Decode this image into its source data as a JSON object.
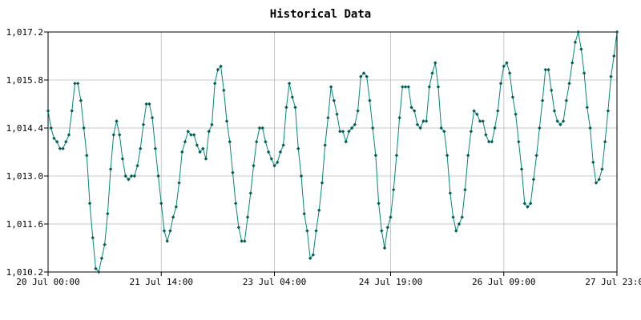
{
  "chart_data": {
    "type": "line",
    "title": "Historical Data",
    "xlabel": "",
    "ylabel": "",
    "grid": true,
    "ylim": [
      1010.2,
      1017.2
    ],
    "xlim": [
      "2023-07-20T00:00",
      "2023-07-27T23:00"
    ],
    "y_ticks": [
      "1,010.2",
      "1,011.6",
      "1,013.0",
      "1,014.4",
      "1,015.8",
      "1,017.2"
    ],
    "y_tick_values": [
      1010.2,
      1011.6,
      1013.0,
      1014.4,
      1015.8,
      1017.2
    ],
    "x_ticks": [
      "20 Jul 00:00",
      "21 Jul 14:00",
      "23 Jul 04:00",
      "24 Jul 19:00",
      "26 Jul 09:00",
      "27 Jul 23:00"
    ],
    "x_tick_values": [
      "2023-07-20T00:00",
      "2023-07-21T14:00",
      "2023-07-23T04:00",
      "2023-07-24T19:00",
      "2023-07-26T09:00",
      "2023-07-27T23:00"
    ],
    "line_color": "#00897b",
    "point_color": "#005a50",
    "series": [
      {
        "x_start": "2023-07-20T00:00",
        "x_step_hours": 1,
        "values": [
          1014.9,
          1014.4,
          1014.1,
          1014.0,
          1013.8,
          1013.8,
          1014.0,
          1014.2,
          1014.9,
          1015.7,
          1015.7,
          1015.2,
          1014.4,
          1013.6,
          1012.2,
          1011.2,
          1010.3,
          1010.2,
          1010.6,
          1011.0,
          1011.9,
          1013.2,
          1014.2,
          1014.6,
          1014.2,
          1013.5,
          1013.0,
          1012.9,
          1013.0,
          1013.0,
          1013.3,
          1013.8,
          1014.5,
          1015.1,
          1015.1,
          1014.7,
          1013.8,
          1013.0,
          1012.2,
          1011.4,
          1011.1,
          1011.4,
          1011.8,
          1012.1,
          1012.8,
          1013.7,
          1014.0,
          1014.3,
          1014.2,
          1014.2,
          1013.9,
          1013.7,
          1013.8,
          1013.5,
          1014.3,
          1014.5,
          1015.7,
          1016.1,
          1016.2,
          1015.5,
          1014.6,
          1014.0,
          1013.1,
          1012.2,
          1011.5,
          1011.1,
          1011.1,
          1011.8,
          1012.5,
          1013.3,
          1014.0,
          1014.4,
          1014.4,
          1014.0,
          1013.7,
          1013.5,
          1013.3,
          1013.4,
          1013.7,
          1013.9,
          1015.0,
          1015.7,
          1015.3,
          1015.0,
          1013.8,
          1013.0,
          1011.9,
          1011.4,
          1010.6,
          1010.7,
          1011.4,
          1012.0,
          1012.8,
          1013.9,
          1014.7,
          1015.6,
          1015.2,
          1014.8,
          1014.3,
          1014.3,
          1014.0,
          1014.3,
          1014.4,
          1014.5,
          1014.9,
          1015.9,
          1016.0,
          1015.9,
          1015.2,
          1014.4,
          1013.6,
          1012.2,
          1011.4,
          1010.9,
          1011.5,
          1011.8,
          1012.6,
          1013.6,
          1014.7,
          1015.6,
          1015.6,
          1015.6,
          1015.0,
          1014.9,
          1014.5,
          1014.4,
          1014.6,
          1014.6,
          1015.6,
          1016.0,
          1016.3,
          1015.6,
          1014.4,
          1014.3,
          1013.6,
          1012.5,
          1011.8,
          1011.4,
          1011.6,
          1011.8,
          1012.6,
          1013.6,
          1014.3,
          1014.9,
          1014.8,
          1014.6,
          1014.6,
          1014.2,
          1014.0,
          1014.0,
          1014.4,
          1014.9,
          1015.7,
          1016.2,
          1016.3,
          1016.0,
          1015.3,
          1014.8,
          1014.0,
          1013.2,
          1012.2,
          1012.1,
          1012.2,
          1012.9,
          1013.6,
          1014.4,
          1015.2,
          1016.1,
          1016.1,
          1015.5,
          1014.9,
          1014.6,
          1014.5,
          1014.6,
          1015.2,
          1015.7,
          1016.3,
          1016.9,
          1017.2,
          1016.7,
          1016.0,
          1015.0,
          1014.4,
          1013.4,
          1012.8,
          1012.9,
          1013.2,
          1014.0,
          1014.9,
          1015.9,
          1016.5,
          1017.2
        ]
      }
    ]
  }
}
